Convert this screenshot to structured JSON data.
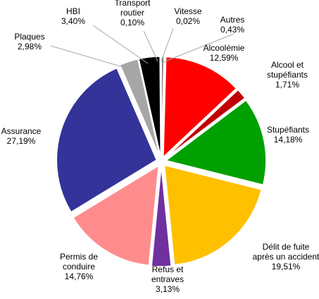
{
  "chart_data": {
    "type": "pie",
    "title": "",
    "start_angle_deg": 90,
    "direction": "clockwise",
    "slices": [
      {
        "label": "Autres",
        "value_text": "0,43%",
        "value": 0.43,
        "color": "#7f7f7f"
      },
      {
        "label": "Alcoolémie",
        "value_text": "12,59%",
        "value": 12.59,
        "color": "#ff0000"
      },
      {
        "label": "Alcool et stupéfiants",
        "value_text": "1,71%",
        "value": 1.71,
        "color": "#c00000"
      },
      {
        "label": "Stupéfiants",
        "value_text": "14,18%",
        "value": 14.18,
        "color": "#00a000"
      },
      {
        "label": "Délit de fuite après un accident",
        "value_text": "19,51%",
        "value": 19.51,
        "color": "#ffc000"
      },
      {
        "label": "Refus et entraves",
        "value_text": "3,13%",
        "value": 3.13,
        "color": "#7030a0"
      },
      {
        "label": "Permis de conduire",
        "value_text": "14,76%",
        "value": 14.76,
        "color": "#ff8c8c"
      },
      {
        "label": "Assurance",
        "value_text": "27,19%",
        "value": 27.19,
        "color": "#333399"
      },
      {
        "label": "Plaques",
        "value_text": "2,98%",
        "value": 2.98,
        "color": "#a6a6a6"
      },
      {
        "label": "HBI",
        "value_text": "3,40%",
        "value": 3.4,
        "color": "#000000"
      },
      {
        "label": "Transport routier",
        "value_text": "0,10%",
        "value": 0.1,
        "color": "#1f3864"
      },
      {
        "label": "Vitesse",
        "value_text": "0,02%",
        "value": 0.02,
        "color": "#d9d9d9"
      }
    ]
  }
}
